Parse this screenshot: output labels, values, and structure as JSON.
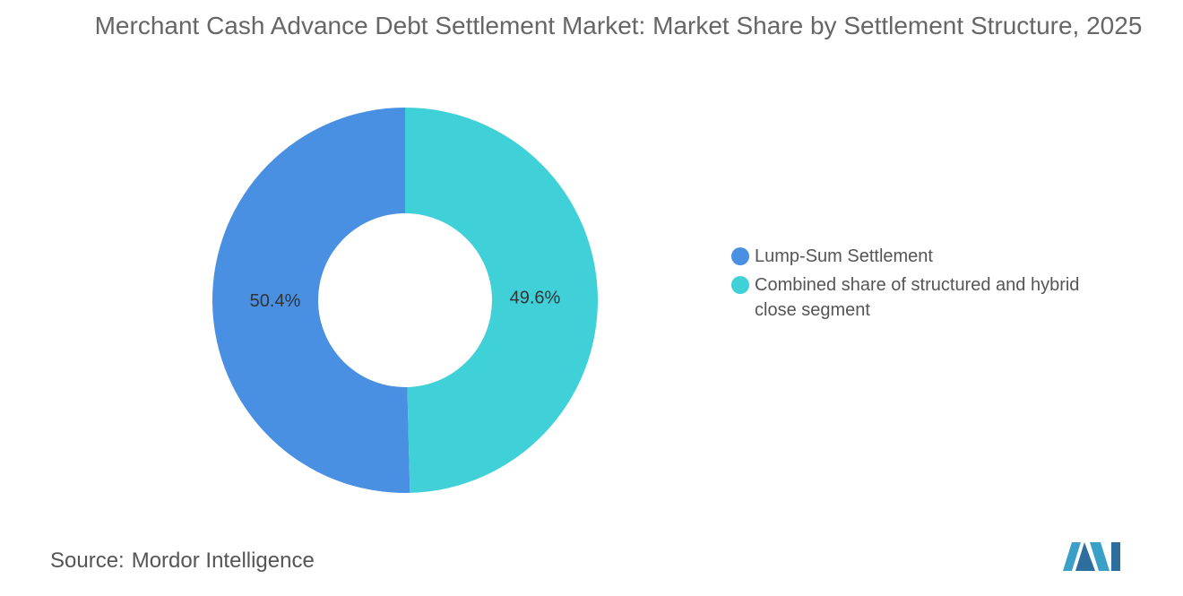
{
  "chart_data": {
    "type": "donut",
    "title": "Merchant Cash Advance Debt Settlement Market: Market Share by Settlement Structure, 2025",
    "categories": [
      "Lump-Sum Settlement",
      "Combined share of structured and hybrid close segment"
    ],
    "values": [
      50.4,
      49.6
    ],
    "value_labels": [
      "50.4%",
      "49.6%"
    ],
    "colors": [
      "#4a90e2",
      "#40d0d8"
    ],
    "legend": "right"
  },
  "source": {
    "label": "Source:",
    "name": "Mordor Intelligence"
  }
}
